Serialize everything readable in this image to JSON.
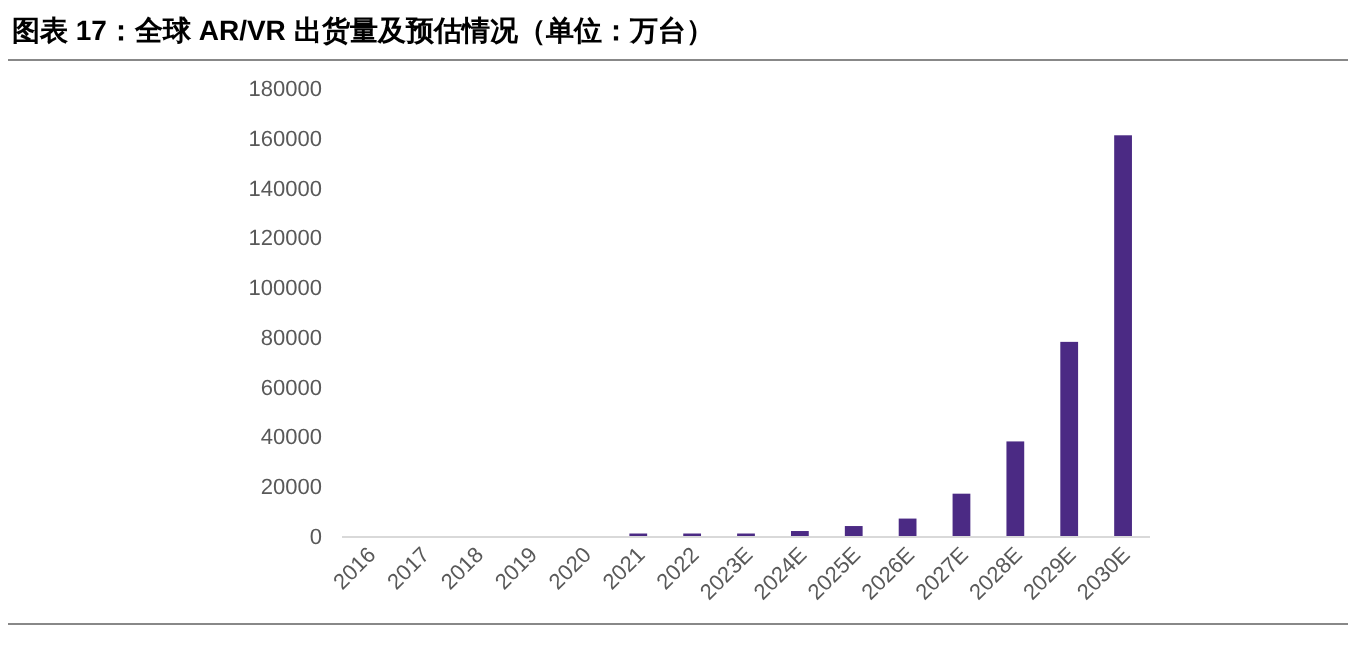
{
  "chart_data": {
    "type": "bar",
    "title": "图表 17：全球 AR/VR 出货量及预估情况（单位：万台）",
    "categories": [
      "2016",
      "2017",
      "2018",
      "2019",
      "2020",
      "2021",
      "2022",
      "2023E",
      "2024E",
      "2025E",
      "2026E",
      "2027E",
      "2028E",
      "2029E",
      "2030E"
    ],
    "values": [
      0,
      0,
      0,
      0,
      0,
      1000,
      1000,
      1000,
      2000,
      4000,
      7000,
      17000,
      38000,
      78000,
      161000
    ],
    "color": "#4b2a84",
    "ylim": [
      0,
      180000
    ],
    "yticks": [
      0,
      20000,
      40000,
      60000,
      80000,
      100000,
      120000,
      140000,
      160000,
      180000
    ],
    "grid": false
  }
}
